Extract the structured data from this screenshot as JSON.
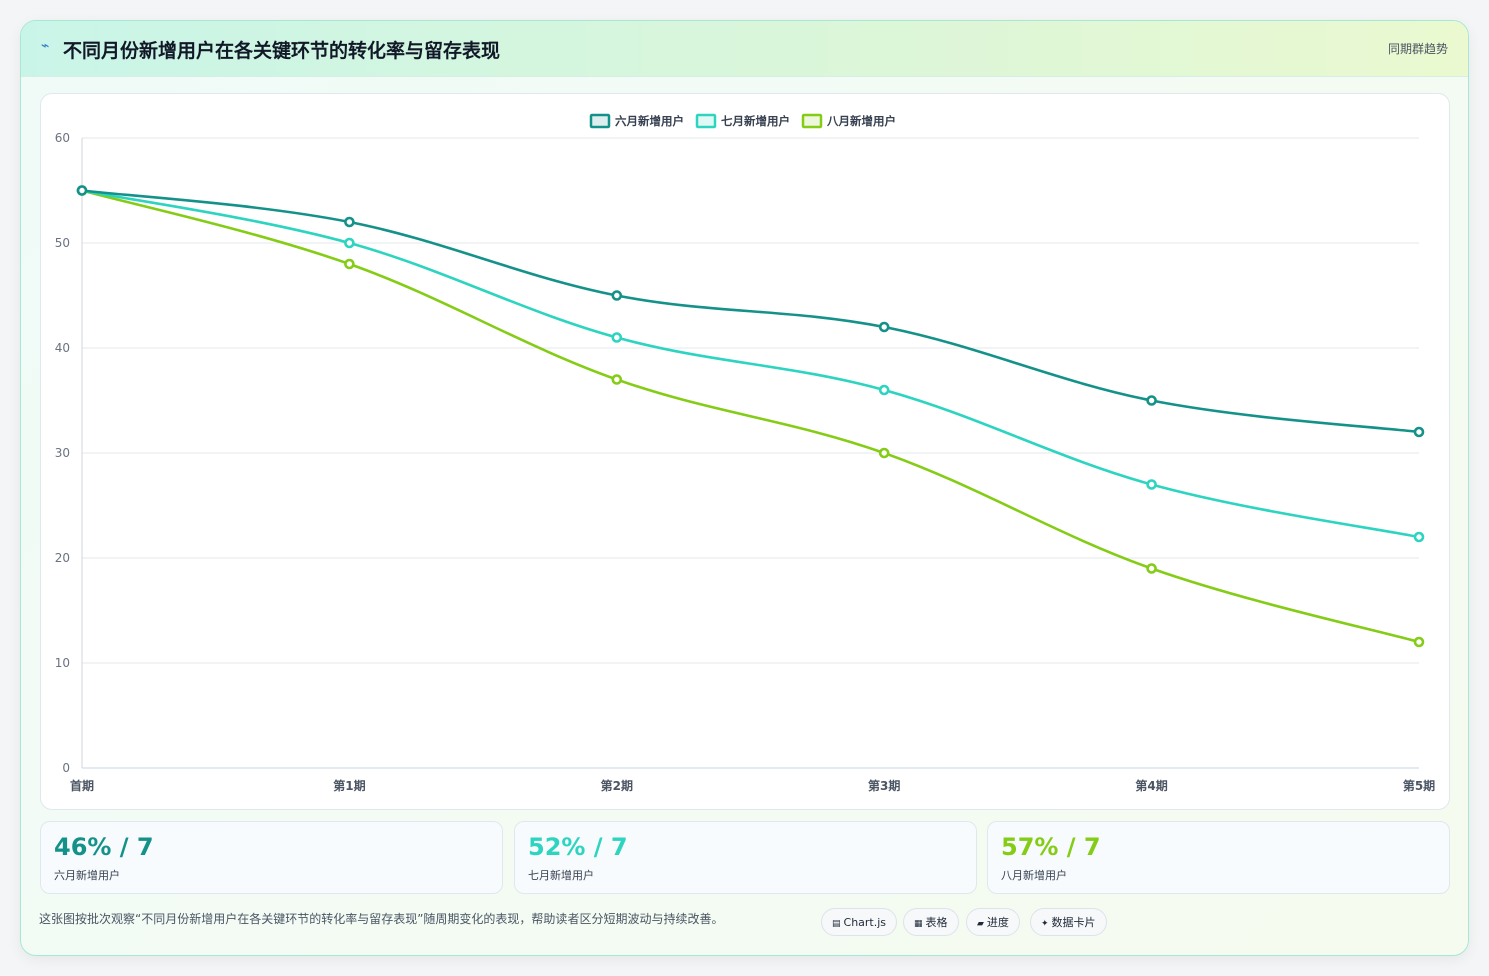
{
  "header": {
    "icon": "line-chart-icon",
    "title": "不同月份新增用户在各关键环节的转化率与留存表现",
    "badge": "同期群趋势"
  },
  "chart_data": {
    "type": "line",
    "categories": [
      "首期",
      "第1期",
      "第2期",
      "第3期",
      "第4期",
      "第5期"
    ],
    "series": [
      {
        "name": "六月新增用户",
        "color": "#14928a",
        "values": [
          55,
          52,
          45,
          42,
          35,
          32
        ]
      },
      {
        "name": "七月新增用户",
        "color": "#2dd4bf",
        "values": [
          55,
          50,
          41,
          36,
          27,
          22
        ]
      },
      {
        "name": "八月新增用户",
        "color": "#84cc16",
        "values": [
          55,
          48,
          37,
          30,
          19,
          12
        ]
      }
    ],
    "ylim": [
      0,
      60
    ],
    "yticks": [
      0,
      10,
      20,
      30,
      40,
      50,
      60
    ],
    "grid": true,
    "legend": "top-center"
  },
  "stats": [
    {
      "value": "46% / 7",
      "label": "六月新增用户",
      "color": "#14928a"
    },
    {
      "value": "52% / 7",
      "label": "七月新增用户",
      "color": "#2dd4bf"
    },
    {
      "value": "57% / 7",
      "label": "八月新增用户",
      "color": "#84cc16"
    }
  ],
  "footer": {
    "note": "这张图按批次观察“不同月份新增用户在各关键环节的转化率与留存表现”随周期变化的表现，帮助读者区分短期波动与持续改善。",
    "chips": [
      {
        "icon": "▤",
        "label": "Chart.js"
      },
      {
        "icon": "▦",
        "label": "表格"
      },
      {
        "icon": "▰",
        "label": "进度"
      },
      {
        "icon": "✦",
        "label": "数据卡片"
      }
    ]
  }
}
